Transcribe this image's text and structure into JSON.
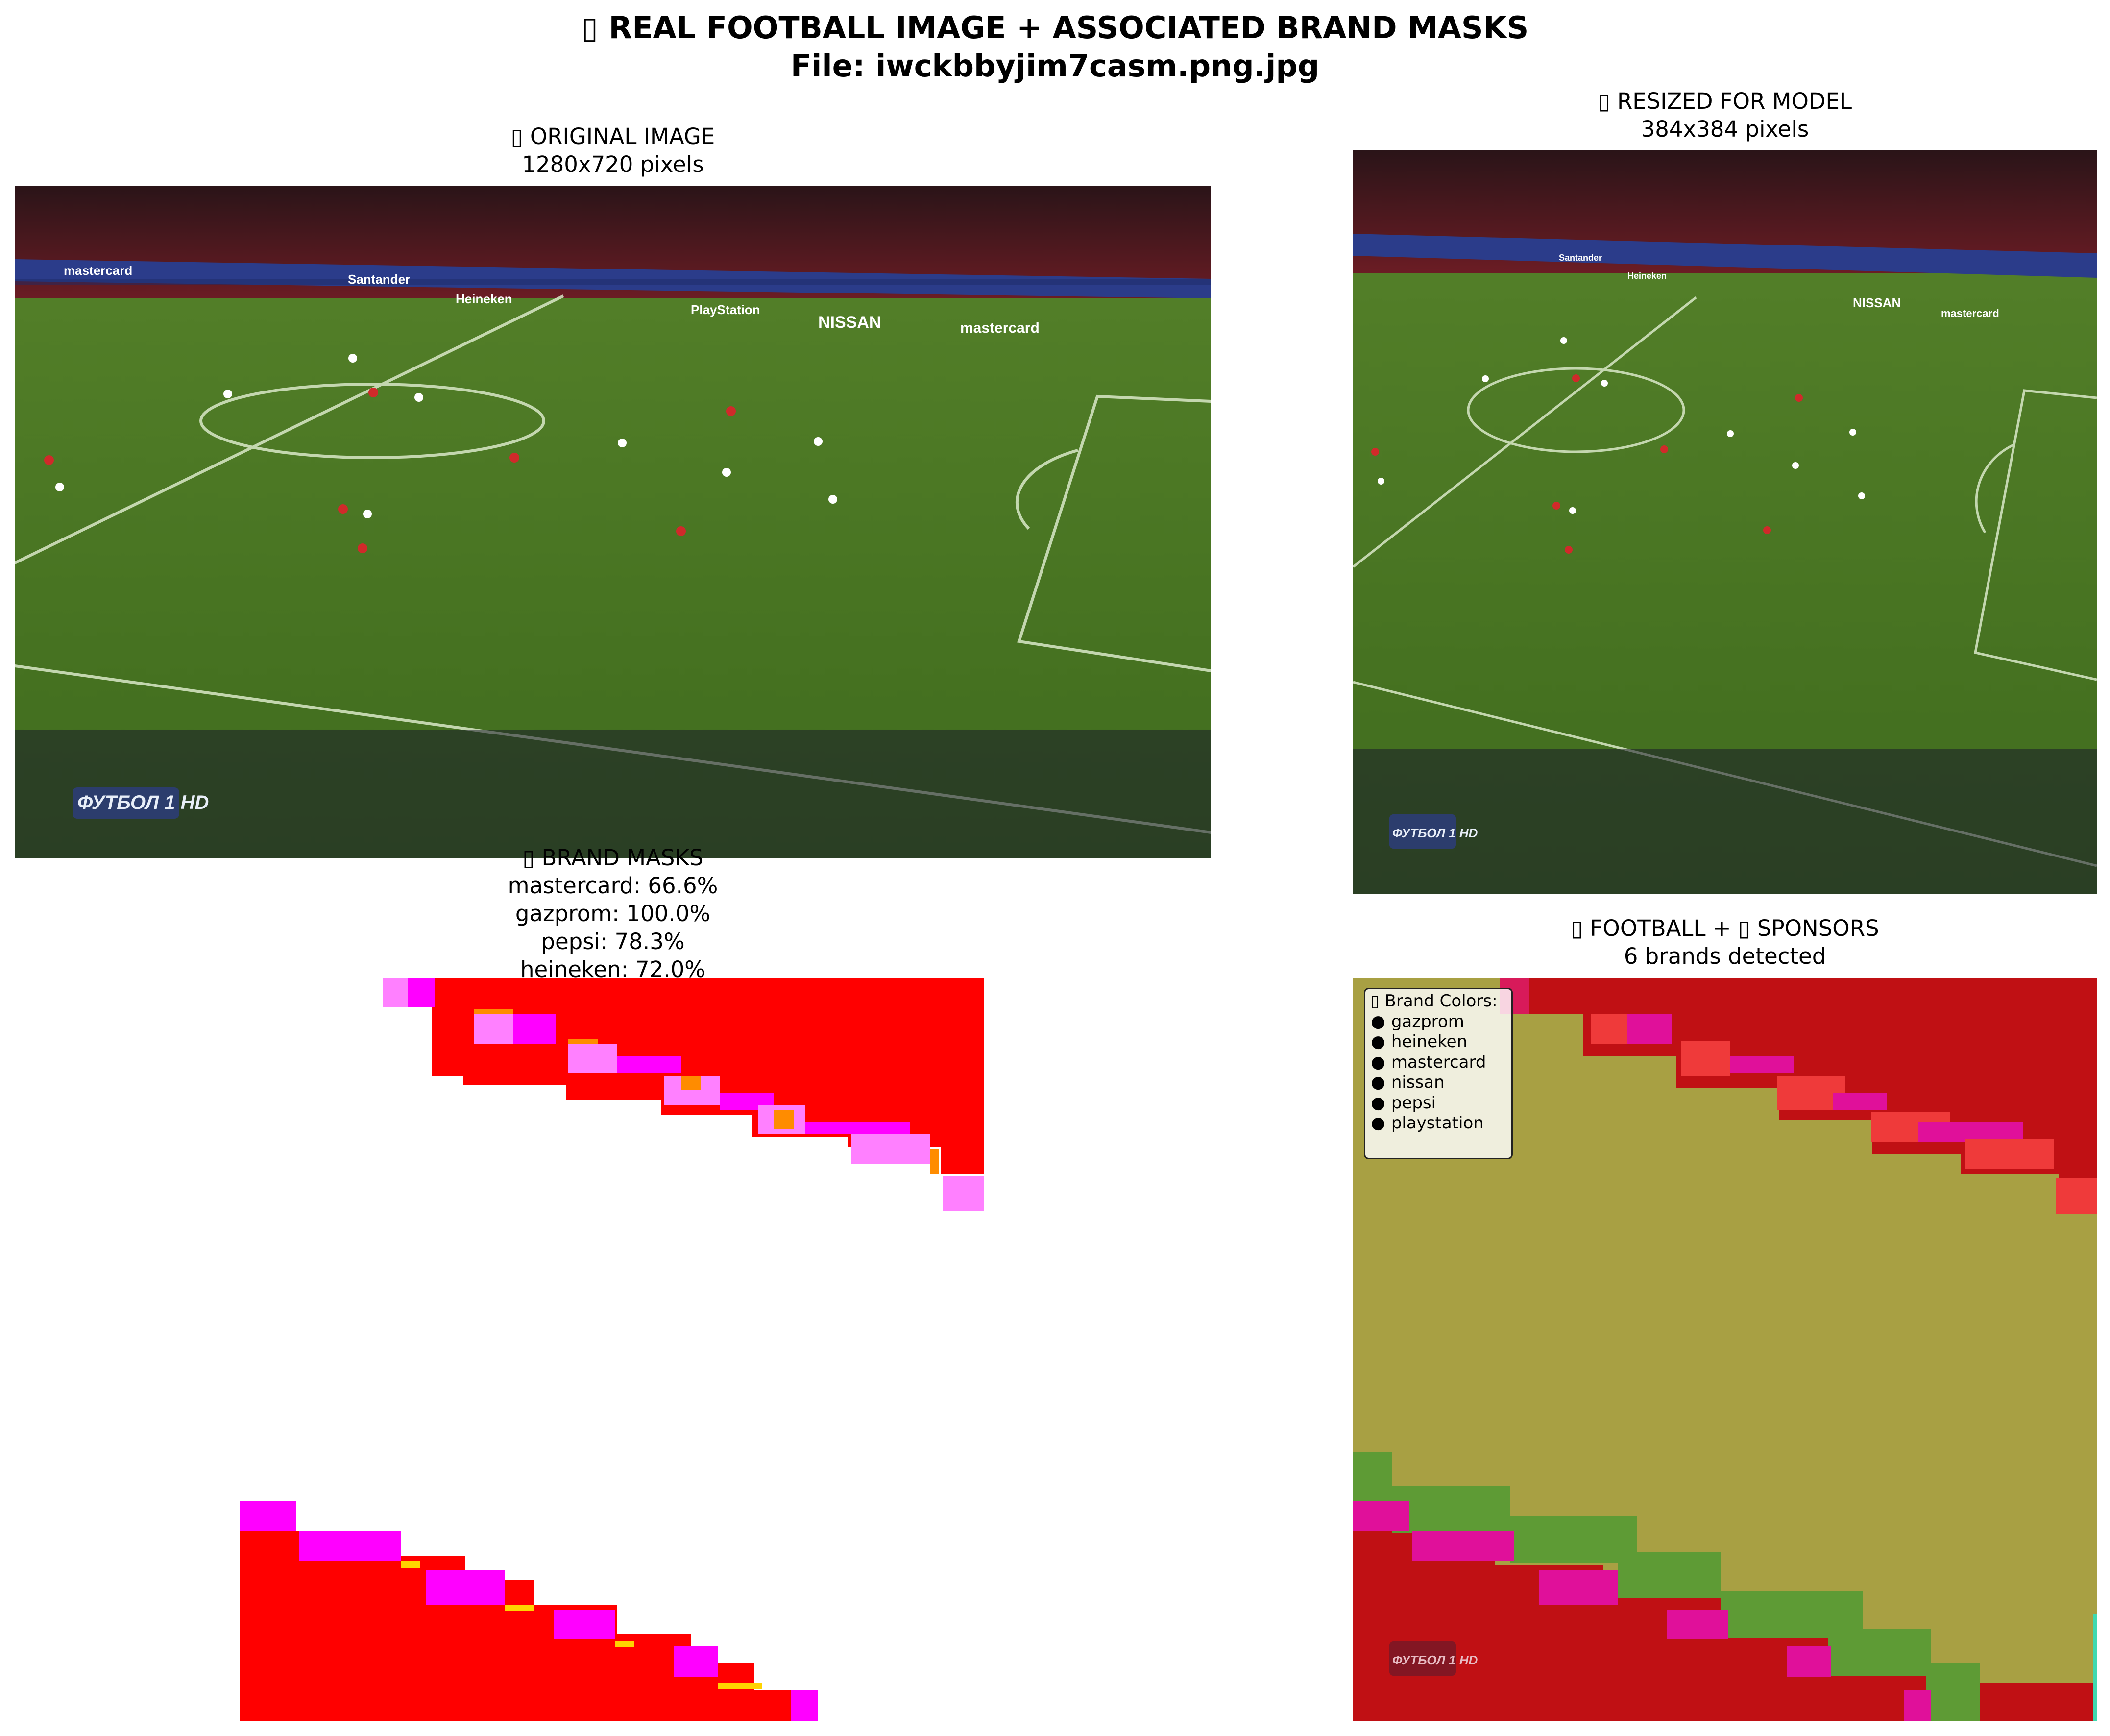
{
  "figure": {
    "title_line1": "▯ REAL FOOTBALL IMAGE + ASSOCIATED BRAND MASKS",
    "title_line2": "File: iwckbbyjim7casm.png.jpg"
  },
  "panels": {
    "original": {
      "title": "▯ ORIGINAL IMAGE",
      "subtitle": "1280x720 pixels"
    },
    "resized": {
      "title": "▯ RESIZED FOR MODEL",
      "subtitle": "384x384 pixels"
    },
    "masks": {
      "title": "▯ BRAND MASKS",
      "lines": [
        "mastercard: 66.6%",
        "gazprom: 100.0%",
        "pepsi: 78.3%",
        "heineken: 72.0%"
      ]
    },
    "overlay": {
      "title": "▯ FOOTBALL + ▯ SPONSORS",
      "subtitle": "6 brands detected"
    }
  },
  "photo_text": {
    "sponsor_boards": [
      "mastercard",
      "Santander",
      "Heineken",
      "PlayStation",
      "NISSAN",
      "mastercard"
    ],
    "broadcaster_logo": "ФУТБОЛ 1 HD"
  },
  "legend": {
    "title": "▯ Brand Colors:",
    "glyph": "●",
    "items": [
      "gazprom",
      "heineken",
      "mastercard",
      "nissan",
      "pepsi",
      "playstation"
    ]
  },
  "colors": {
    "mask_red": "#ff0000",
    "mask_magenta": "#ff00ff",
    "mask_pink": "#ff80ff",
    "mask_orange": "#ff8c00",
    "mask_yellow": "#ffd400",
    "overlay_olive": "#a8a043",
    "overlay_green": "#5e9b35",
    "overlay_dark_red": "#c2000f",
    "overlay_cyan": "#3fd9b0",
    "pitch_green": "#4f7a24",
    "stand_red": "#7a1a22"
  },
  "chart_data": {
    "type": "image_grid",
    "title": "▯ REAL FOOTBALL IMAGE + ASSOCIATED BRAND MASKS",
    "subplots": [
      {
        "type": "image",
        "title": "▯ ORIGINAL IMAGE",
        "subtitle": "1280x720 pixels"
      },
      {
        "type": "image",
        "title": "▯ RESIZED FOR MODEL",
        "subtitle": "384x384 pixels"
      },
      {
        "type": "mask",
        "title": "▯ BRAND MASKS",
        "coverage_percent": {
          "mastercard": 66.6,
          "gazprom": 100.0,
          "pepsi": 78.3,
          "heineken": 72.0
        }
      },
      {
        "type": "overlay",
        "title": "▯ FOOTBALL + ▯ SPONSORS",
        "subtitle": "6 brands detected",
        "legend": [
          "gazprom",
          "heineken",
          "mastercard",
          "nissan",
          "pepsi",
          "playstation"
        ],
        "legend_position": "top-left"
      }
    ]
  }
}
